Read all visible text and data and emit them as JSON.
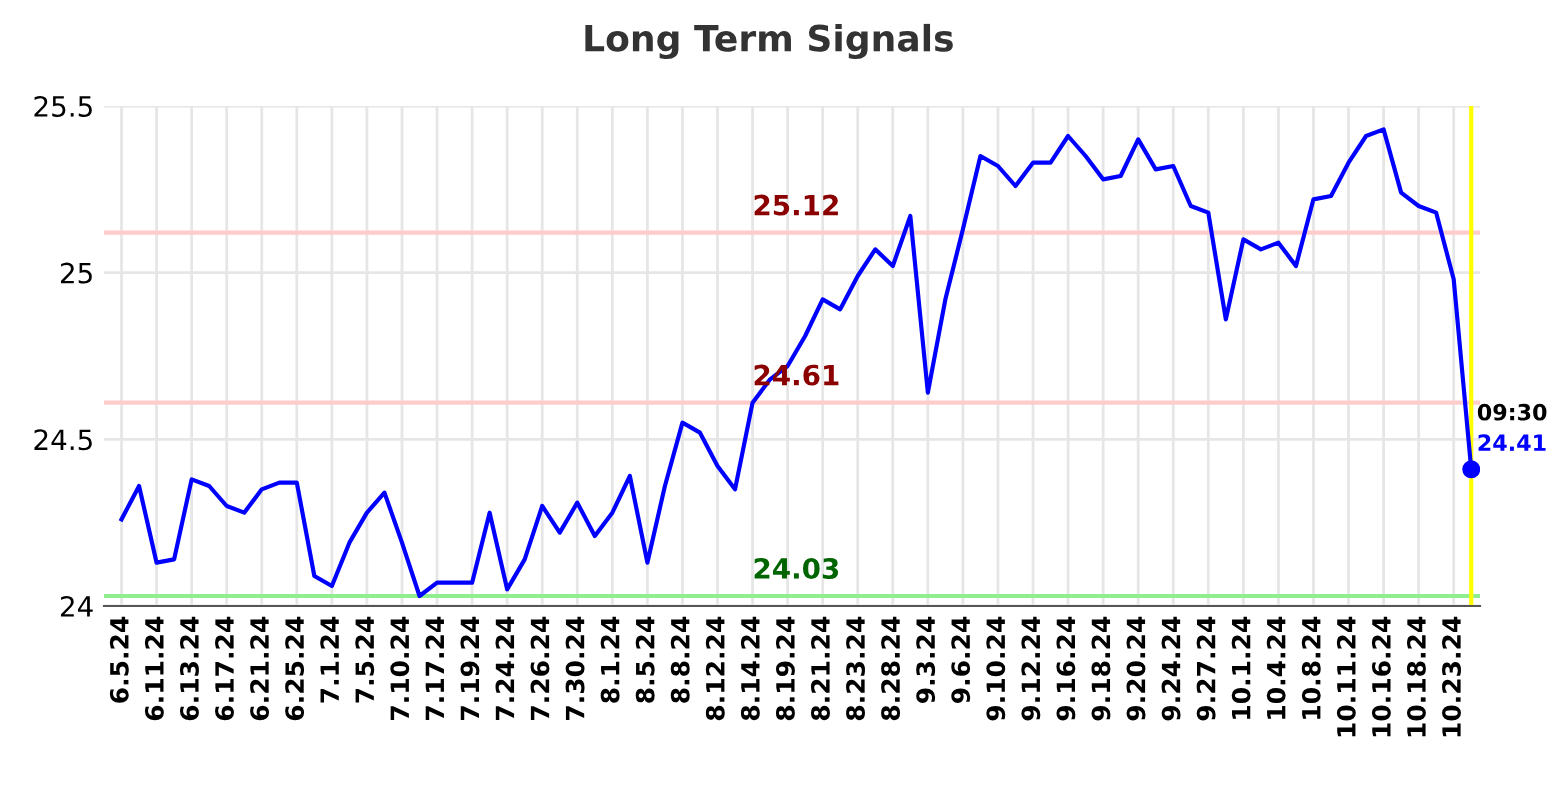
{
  "chart_data": {
    "type": "line",
    "title": "Long Term Signals",
    "categories": [
      "6.5.24",
      null,
      "6.11.24",
      null,
      "6.13.24",
      null,
      "6.17.24",
      null,
      "6.21.24",
      null,
      "6.25.24",
      null,
      "7.1.24",
      null,
      "7.5.24",
      null,
      "7.10.24",
      null,
      "7.17.24",
      null,
      "7.19.24",
      null,
      "7.24.24",
      null,
      "7.26.24",
      null,
      "7.30.24",
      null,
      "8.1.24",
      null,
      "8.5.24",
      null,
      "8.8.24",
      null,
      "8.12.24",
      null,
      "8.14.24",
      null,
      "8.19.24",
      null,
      "8.21.24",
      null,
      "8.23.24",
      null,
      "8.28.24",
      null,
      "9.3.24",
      null,
      "9.6.24",
      null,
      "9.10.24",
      null,
      "9.12.24",
      null,
      "9.16.24",
      null,
      "9.18.24",
      null,
      "9.20.24",
      null,
      "9.24.24",
      null,
      "9.27.24",
      null,
      "10.1.24",
      null,
      "10.4.24",
      null,
      "10.8.24",
      null,
      "10.11.24",
      null,
      "10.16.24",
      null,
      "10.18.24",
      null,
      "10.23.24",
      null
    ],
    "series": [
      {
        "color": "#0000ff",
        "marker": "none",
        "values": [
          24.26,
          24.36,
          24.13,
          24.14,
          24.38,
          24.36,
          24.3,
          24.28,
          24.35,
          24.37,
          24.37,
          24.09,
          24.06,
          24.19,
          24.28,
          24.34,
          24.19,
          24.03,
          24.07,
          24.07,
          24.07,
          24.28,
          24.05,
          24.14,
          24.3,
          24.22,
          24.31,
          24.21,
          24.28,
          24.39,
          24.13,
          24.36,
          24.55,
          24.52,
          24.42,
          24.35,
          24.61,
          24.68,
          24.72,
          24.81,
          24.92,
          24.89,
          24.99,
          25.07,
          25.02,
          25.17,
          24.64,
          24.92,
          25.13,
          25.35,
          25.32,
          25.26,
          25.33,
          25.33,
          25.41,
          25.35,
          25.28,
          25.29,
          25.4,
          25.31,
          25.32,
          25.2,
          25.18,
          24.86,
          25.1,
          25.07,
          25.09,
          25.02,
          25.22,
          25.23,
          25.33,
          25.41,
          25.43,
          25.24,
          25.2,
          25.18,
          24.98,
          24.41
        ]
      },
      {
        "type": "scatter",
        "color": "#0000ff",
        "marker": "circle",
        "values": [
          null,
          null,
          null,
          null,
          null,
          null,
          null,
          null,
          null,
          null,
          null,
          null,
          null,
          null,
          null,
          null,
          null,
          null,
          null,
          null,
          null,
          null,
          null,
          null,
          null,
          null,
          null,
          null,
          null,
          null,
          null,
          null,
          null,
          null,
          null,
          null,
          null,
          null,
          null,
          null,
          null,
          null,
          null,
          null,
          null,
          null,
          null,
          null,
          null,
          null,
          null,
          null,
          null,
          null,
          null,
          null,
          null,
          null,
          null,
          null,
          null,
          null,
          null,
          null,
          null,
          null,
          null,
          null,
          null,
          null,
          null,
          null,
          null,
          null,
          null,
          null,
          null,
          24.41
        ]
      }
    ],
    "ylim": [
      24,
      25.5
    ],
    "yticks": [
      24,
      24.5,
      25,
      25.5
    ],
    "grid": true,
    "ref_lines": [
      {
        "axis": "y",
        "value": 25.12,
        "label": "25.12",
        "color": "#ffcccc"
      },
      {
        "axis": "y",
        "value": 24.61,
        "label": "24.61",
        "color": "#ffcccc"
      },
      {
        "axis": "y",
        "value": 24.03,
        "label": "24.03",
        "color": "#90ee90"
      }
    ],
    "annotations": [
      "09:30",
      "24.41"
    ]
  }
}
